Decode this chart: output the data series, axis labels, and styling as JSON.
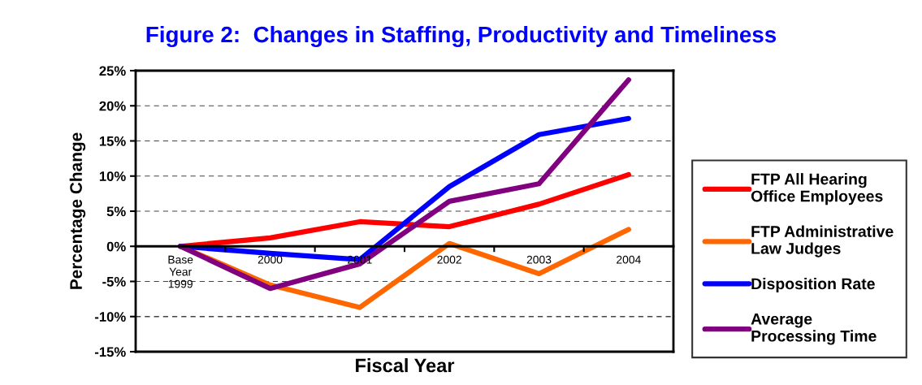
{
  "chart_data": {
    "type": "line",
    "title": "Figure 2:  Changes in Staffing, Productivity and Timeliness",
    "xlabel": "Fiscal Year",
    "ylabel": "Percentage Change",
    "categories": [
      "Base\nYear\n1999",
      "2000",
      "2001",
      "2002",
      "2003",
      "2004"
    ],
    "series": [
      {
        "name": "FTP All Hearing\nOffice Employees",
        "color": "#ff0000",
        "values": [
          0,
          1.2,
          3.5,
          2.8,
          6.0,
          10.2
        ]
      },
      {
        "name": "FTP Administrative\nLaw Judges",
        "color": "#ff6600",
        "values": [
          0,
          -5.5,
          -8.7,
          0.4,
          -3.9,
          2.4
        ]
      },
      {
        "name": "Disposition Rate",
        "color": "#0000ff",
        "values": [
          0,
          -1.0,
          -1.9,
          8.5,
          15.9,
          18.2
        ]
      },
      {
        "name": "Average\nProcessing Time",
        "color": "#800080",
        "values": [
          0,
          -6.0,
          -2.5,
          6.4,
          8.9,
          23.7
        ]
      }
    ],
    "ylim": [
      -15,
      25
    ],
    "yticks": [
      {
        "value": -15,
        "label": "-15%"
      },
      {
        "value": -10,
        "label": "-10%"
      },
      {
        "value": -5,
        "label": "-5%"
      },
      {
        "value": 0,
        "label": "0%"
      },
      {
        "value": 5,
        "label": "5%"
      },
      {
        "value": 10,
        "label": "10%"
      },
      {
        "value": 15,
        "label": "15%"
      },
      {
        "value": 20,
        "label": "20%"
      },
      {
        "value": 25,
        "label": "25%"
      }
    ],
    "grid": "y",
    "legend": "right",
    "marker": "none",
    "line_style": "solid"
  }
}
